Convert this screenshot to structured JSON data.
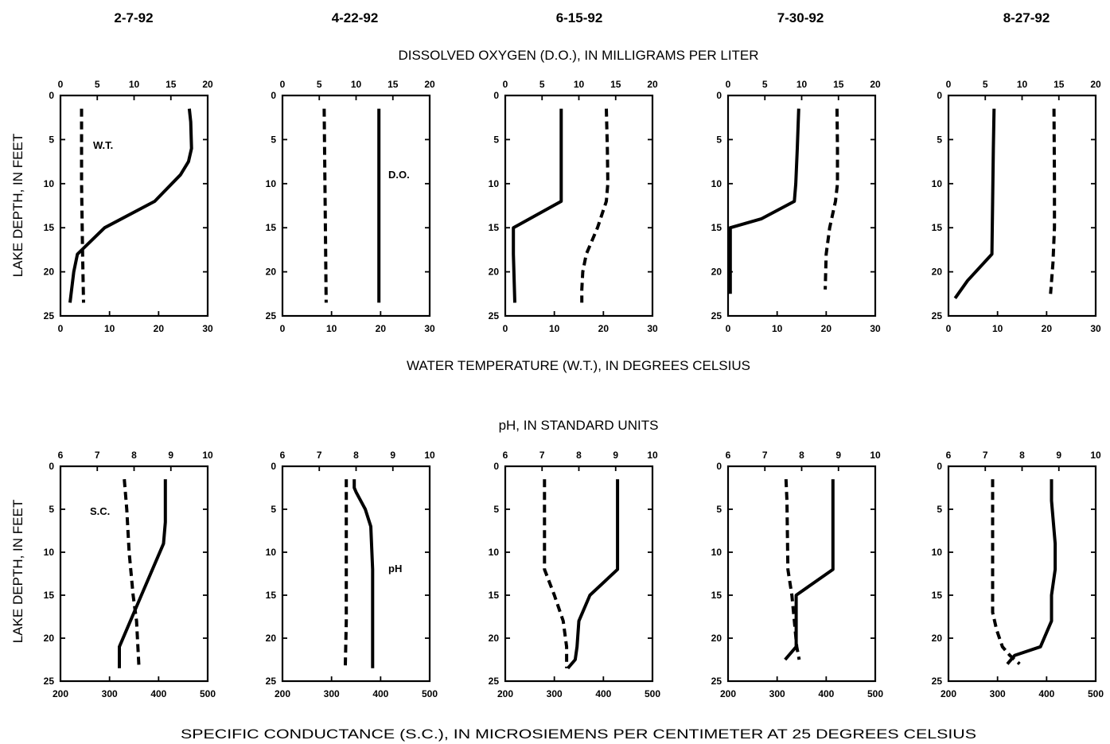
{
  "dates": [
    "2-7-92",
    "4-22-92",
    "6-15-92",
    "7-30-92",
    "8-27-92"
  ],
  "row_titles": {
    "do_title": "DISSOLVED OXYGEN (D.O.), IN MILLIGRAMS PER LITER",
    "wt_title": "WATER TEMPERATURE (W.T.), IN DEGREES CELSIUS",
    "ph_title": "pH, IN STANDARD UNITS",
    "sc_title": "SPECIFIC CONDUCTANCE (S.C.), IN MICROSIEMENS PER CENTIMETER AT 25 DEGREES CELSIUS"
  },
  "ylabel": "LAKE DEPTH, IN FEET",
  "annotations": {
    "wt": "W.T.",
    "do": "D.O.",
    "sc": "S.C.",
    "ph": "pH"
  },
  "chart_data": [
    {
      "type": "line",
      "row": "top",
      "date": "2-7-92",
      "ylabel": "LAKE DEPTH, IN FEET",
      "ylim": [
        25,
        0
      ],
      "yticks": [
        0,
        5,
        10,
        15,
        20,
        25
      ],
      "top_axis": {
        "label": "DISSOLVED OXYGEN (D.O.), IN MILLIGRAMS PER LITER",
        "range": [
          0,
          20
        ],
        "ticks": [
          0,
          5,
          10,
          15,
          20
        ]
      },
      "bottom_axis": {
        "label": "WATER TEMPERATURE (W.T.), IN DEGREES CELSIUS",
        "range": [
          0,
          30
        ],
        "ticks": [
          0,
          10,
          20,
          30
        ]
      },
      "series": [
        {
          "name": "D.O.",
          "style": "solid",
          "axis": "top",
          "x": [
            17.5,
            17.7,
            17.8,
            17.4,
            16.3,
            12.8,
            6,
            2.3,
            1.8,
            1.3
          ],
          "depth": [
            1.5,
            3,
            6,
            7.5,
            9,
            12,
            15,
            18,
            20,
            23.5
          ]
        },
        {
          "name": "W.T.",
          "style": "dashed",
          "axis": "bottom",
          "x": [
            4.3,
            4.3,
            4.5,
            4.7
          ],
          "depth": [
            1.5,
            10,
            18,
            23.5
          ]
        }
      ]
    },
    {
      "type": "line",
      "row": "top",
      "date": "4-22-92",
      "ylabel": "LAKE DEPTH, IN FEET",
      "ylim": [
        25,
        0
      ],
      "yticks": [
        0,
        5,
        10,
        15,
        20,
        25
      ],
      "top_axis": {
        "label": "DISSOLVED OXYGEN (D.O.), IN MILLIGRAMS PER LITER",
        "range": [
          0,
          20
        ],
        "ticks": [
          0,
          5,
          10,
          15,
          20
        ]
      },
      "bottom_axis": {
        "label": "WATER TEMPERATURE (W.T.), IN DEGREES CELSIUS",
        "range": [
          0,
          30
        ],
        "ticks": [
          0,
          10,
          20,
          30
        ]
      },
      "series": [
        {
          "name": "D.O.",
          "style": "solid",
          "axis": "top",
          "x": [
            13.1,
            13.1,
            13.1
          ],
          "depth": [
            1.5,
            12,
            23.5
          ]
        },
        {
          "name": "W.T.",
          "style": "dashed",
          "axis": "bottom",
          "x": [
            8.5,
            8.7,
            8.9
          ],
          "depth": [
            1.5,
            12,
            23.5
          ]
        }
      ]
    },
    {
      "type": "line",
      "row": "top",
      "date": "6-15-92",
      "ylabel": "LAKE DEPTH, IN FEET",
      "ylim": [
        25,
        0
      ],
      "yticks": [
        0,
        5,
        10,
        15,
        20,
        25
      ],
      "top_axis": {
        "label": "DISSOLVED OXYGEN (D.O.), IN MILLIGRAMS PER LITER",
        "range": [
          0,
          20
        ],
        "ticks": [
          0,
          5,
          10,
          15,
          20
        ]
      },
      "bottom_axis": {
        "label": "WATER TEMPERATURE (W.T.), IN DEGREES CELSIUS",
        "range": [
          0,
          30
        ],
        "ticks": [
          0,
          10,
          20,
          30
        ]
      },
      "series": [
        {
          "name": "D.O.",
          "style": "solid",
          "axis": "top",
          "x": [
            7.6,
            7.6,
            7.6,
            1.1,
            1.1,
            1.3
          ],
          "depth": [
            1.5,
            6,
            12,
            15,
            18,
            23.5
          ]
        },
        {
          "name": "W.T.",
          "style": "dashed",
          "axis": "bottom",
          "x": [
            20.6,
            20.8,
            20.9,
            20.6,
            18.8,
            16.5,
            15.8,
            15.6,
            15.6
          ],
          "depth": [
            1.5,
            6,
            10,
            12,
            15,
            18,
            20,
            22,
            23.5
          ]
        }
      ]
    },
    {
      "type": "line",
      "row": "top",
      "date": "7-30-92",
      "ylabel": "LAKE DEPTH, IN FEET",
      "ylim": [
        25,
        0
      ],
      "yticks": [
        0,
        5,
        10,
        15,
        20,
        25
      ],
      "top_axis": {
        "label": "DISSOLVED OXYGEN (D.O.), IN MILLIGRAMS PER LITER",
        "range": [
          0,
          20
        ],
        "ticks": [
          0,
          5,
          10,
          15,
          20
        ]
      },
      "bottom_axis": {
        "label": "WATER TEMPERATURE (W.T.), IN DEGREES CELSIUS",
        "range": [
          0,
          30
        ],
        "ticks": [
          0,
          10,
          20,
          30
        ]
      },
      "series": [
        {
          "name": "D.O.",
          "style": "solid",
          "axis": "top",
          "x": [
            9.6,
            9.4,
            9.2,
            9.0,
            4.5,
            0.3,
            0.3
          ],
          "depth": [
            1.5,
            6,
            10,
            12,
            14,
            15,
            22.5
          ]
        },
        {
          "name": "W.T.",
          "style": "dashed",
          "axis": "bottom",
          "x": [
            22.2,
            22.3,
            22.3,
            21.9,
            20.7,
            20.0,
            19.8
          ],
          "depth": [
            1.5,
            6,
            10,
            12,
            15,
            18,
            22
          ]
        }
      ]
    },
    {
      "type": "line",
      "row": "top",
      "date": "8-27-92",
      "ylabel": "LAKE DEPTH, IN FEET",
      "ylim": [
        25,
        0
      ],
      "yticks": [
        0,
        5,
        10,
        15,
        20,
        25
      ],
      "top_axis": {
        "label": "DISSOLVED OXYGEN (D.O.), IN MILLIGRAMS PER LITER",
        "range": [
          0,
          20
        ],
        "ticks": [
          0,
          5,
          10,
          15,
          20
        ]
      },
      "bottom_axis": {
        "label": "WATER TEMPERATURE (W.T.), IN DEGREES CELSIUS",
        "range": [
          0,
          30
        ],
        "ticks": [
          0,
          10,
          20,
          30
        ]
      },
      "series": [
        {
          "name": "D.O.",
          "style": "solid",
          "axis": "top",
          "x": [
            6.2,
            6.1,
            6.0,
            5.9,
            2.6,
            0.9
          ],
          "depth": [
            1.5,
            6,
            12,
            18,
            21,
            23
          ]
        },
        {
          "name": "W.T.",
          "style": "dashed",
          "axis": "bottom",
          "x": [
            21.5,
            21.6,
            21.6,
            21.3,
            20.8
          ],
          "depth": [
            1.5,
            10,
            15,
            19,
            22.5
          ]
        }
      ]
    },
    {
      "type": "line",
      "row": "bottom",
      "date": "2-7-92",
      "ylabel": "LAKE DEPTH, IN FEET",
      "ylim": [
        25,
        0
      ],
      "yticks": [
        0,
        5,
        10,
        15,
        20,
        25
      ],
      "top_axis": {
        "label": "pH, IN STANDARD UNITS",
        "range": [
          6,
          10
        ],
        "ticks": [
          6,
          7,
          8,
          9,
          10
        ]
      },
      "bottom_axis": {
        "label": "SPECIFIC CONDUCTANCE (S.C.), IN MICROSIEMENS PER CENTIMETER AT 25 DEGREES CELSIUS",
        "range": [
          200,
          500
        ],
        "ticks": [
          200,
          300,
          400,
          500
        ]
      },
      "series": [
        {
          "name": "pH",
          "style": "solid",
          "axis": "top",
          "x": [
            8.85,
            8.85,
            8.85,
            8.8,
            8.5,
            8.2,
            7.6,
            7.6
          ],
          "depth": [
            1.5,
            4,
            6.5,
            9,
            12,
            15,
            21,
            23.5
          ]
        },
        {
          "name": "S.C.",
          "style": "dashed",
          "axis": "bottom",
          "x": [
            330,
            335,
            340,
            348,
            355,
            360
          ],
          "depth": [
            1.5,
            5,
            10,
            15,
            18,
            23.5
          ]
        }
      ]
    },
    {
      "type": "line",
      "row": "bottom",
      "date": "4-22-92",
      "ylabel": "LAKE DEPTH, IN FEET",
      "ylim": [
        25,
        0
      ],
      "yticks": [
        0,
        5,
        10,
        15,
        20,
        25
      ],
      "top_axis": {
        "label": "pH, IN STANDARD UNITS",
        "range": [
          6,
          10
        ],
        "ticks": [
          6,
          7,
          8,
          9,
          10
        ]
      },
      "bottom_axis": {
        "label": "SPECIFIC CONDUCTANCE (S.C.), IN MICROSIEMENS PER CENTIMETER AT 25 DEGREES CELSIUS",
        "range": [
          200,
          500
        ],
        "ticks": [
          200,
          300,
          400,
          500
        ]
      },
      "series": [
        {
          "name": "pH",
          "style": "solid",
          "axis": "top",
          "x": [
            7.95,
            7.95,
            8.0,
            8.25,
            8.4,
            8.45,
            8.45
          ],
          "depth": [
            1.5,
            2.5,
            3,
            5,
            7,
            12,
            23.5
          ]
        },
        {
          "name": "S.C.",
          "style": "dashed",
          "axis": "bottom",
          "x": [
            330,
            330,
            330,
            328
          ],
          "depth": [
            1.5,
            10,
            18,
            23.5
          ]
        }
      ]
    },
    {
      "type": "line",
      "row": "bottom",
      "date": "6-15-92",
      "ylabel": "LAKE DEPTH, IN FEET",
      "ylim": [
        25,
        0
      ],
      "yticks": [
        0,
        5,
        10,
        15,
        20,
        25
      ],
      "top_axis": {
        "label": "pH, IN STANDARD UNITS",
        "range": [
          6,
          10
        ],
        "ticks": [
          6,
          7,
          8,
          9,
          10
        ]
      },
      "bottom_axis": {
        "label": "SPECIFIC CONDUCTANCE (S.C.), IN MICROSIEMENS PER CENTIMETER AT 25 DEGREES CELSIUS",
        "range": [
          200,
          500
        ],
        "ticks": [
          200,
          300,
          400,
          500
        ]
      },
      "series": [
        {
          "name": "pH",
          "style": "solid",
          "axis": "top",
          "x": [
            9.05,
            9.05,
            9.05,
            8.3,
            8.0,
            7.95,
            7.9,
            7.7
          ],
          "depth": [
            1.5,
            6,
            12,
            15,
            18,
            21,
            22.5,
            23.5
          ]
        },
        {
          "name": "S.C.",
          "style": "dashed",
          "axis": "bottom",
          "x": [
            280,
            280,
            280,
            300,
            318,
            325,
            325
          ],
          "depth": [
            1.5,
            6,
            12,
            15,
            18,
            21,
            23.5
          ]
        }
      ]
    },
    {
      "type": "line",
      "row": "bottom",
      "date": "7-30-92",
      "ylabel": "LAKE DEPTH, IN FEET",
      "ylim": [
        25,
        0
      ],
      "yticks": [
        0,
        5,
        10,
        15,
        20,
        25
      ],
      "top_axis": {
        "label": "pH, IN STANDARD UNITS",
        "range": [
          6,
          10
        ],
        "ticks": [
          6,
          7,
          8,
          9,
          10
        ]
      },
      "bottom_axis": {
        "label": "SPECIFIC CONDUCTANCE (S.C.), IN MICROSIEMENS PER CENTIMETER AT 25 DEGREES CELSIUS",
        "range": [
          200,
          500
        ],
        "ticks": [
          200,
          300,
          400,
          500
        ]
      },
      "series": [
        {
          "name": "pH",
          "style": "solid",
          "axis": "top",
          "x": [
            8.85,
            8.85,
            8.85,
            7.85,
            7.85,
            7.85,
            7.55
          ],
          "depth": [
            1.5,
            6,
            12,
            15,
            18,
            21,
            22.5
          ]
        },
        {
          "name": "S.C.",
          "style": "dashed",
          "axis": "bottom",
          "x": [
            318,
            320,
            322,
            330,
            335,
            340,
            345
          ],
          "depth": [
            1.5,
            4,
            12,
            15,
            18,
            21,
            22.5
          ]
        }
      ]
    },
    {
      "type": "line",
      "row": "bottom",
      "date": "8-27-92",
      "ylabel": "LAKE DEPTH, IN FEET",
      "ylim": [
        25,
        0
      ],
      "yticks": [
        0,
        5,
        10,
        15,
        20,
        25
      ],
      "top_axis": {
        "label": "pH, IN STANDARD UNITS",
        "range": [
          6,
          10
        ],
        "ticks": [
          6,
          7,
          8,
          9,
          10
        ]
      },
      "bottom_axis": {
        "label": "SPECIFIC CONDUCTANCE (S.C.), IN MICROSIEMENS PER CENTIMETER AT 25 DEGREES CELSIUS",
        "range": [
          200,
          500
        ],
        "ticks": [
          200,
          300,
          400,
          500
        ]
      },
      "series": [
        {
          "name": "pH",
          "style": "solid",
          "axis": "top",
          "x": [
            8.8,
            8.8,
            8.85,
            8.9,
            8.9,
            8.8,
            8.8,
            8.5,
            7.8,
            7.6
          ],
          "depth": [
            1.5,
            4,
            6.5,
            9,
            12,
            15,
            18,
            21,
            22,
            23
          ]
        },
        {
          "name": "S.C.",
          "style": "dashed",
          "axis": "bottom",
          "x": [
            290,
            290,
            290,
            290,
            298,
            310,
            325,
            345
          ],
          "depth": [
            1.5,
            6,
            12,
            17,
            19,
            21,
            22,
            23
          ]
        }
      ]
    }
  ]
}
